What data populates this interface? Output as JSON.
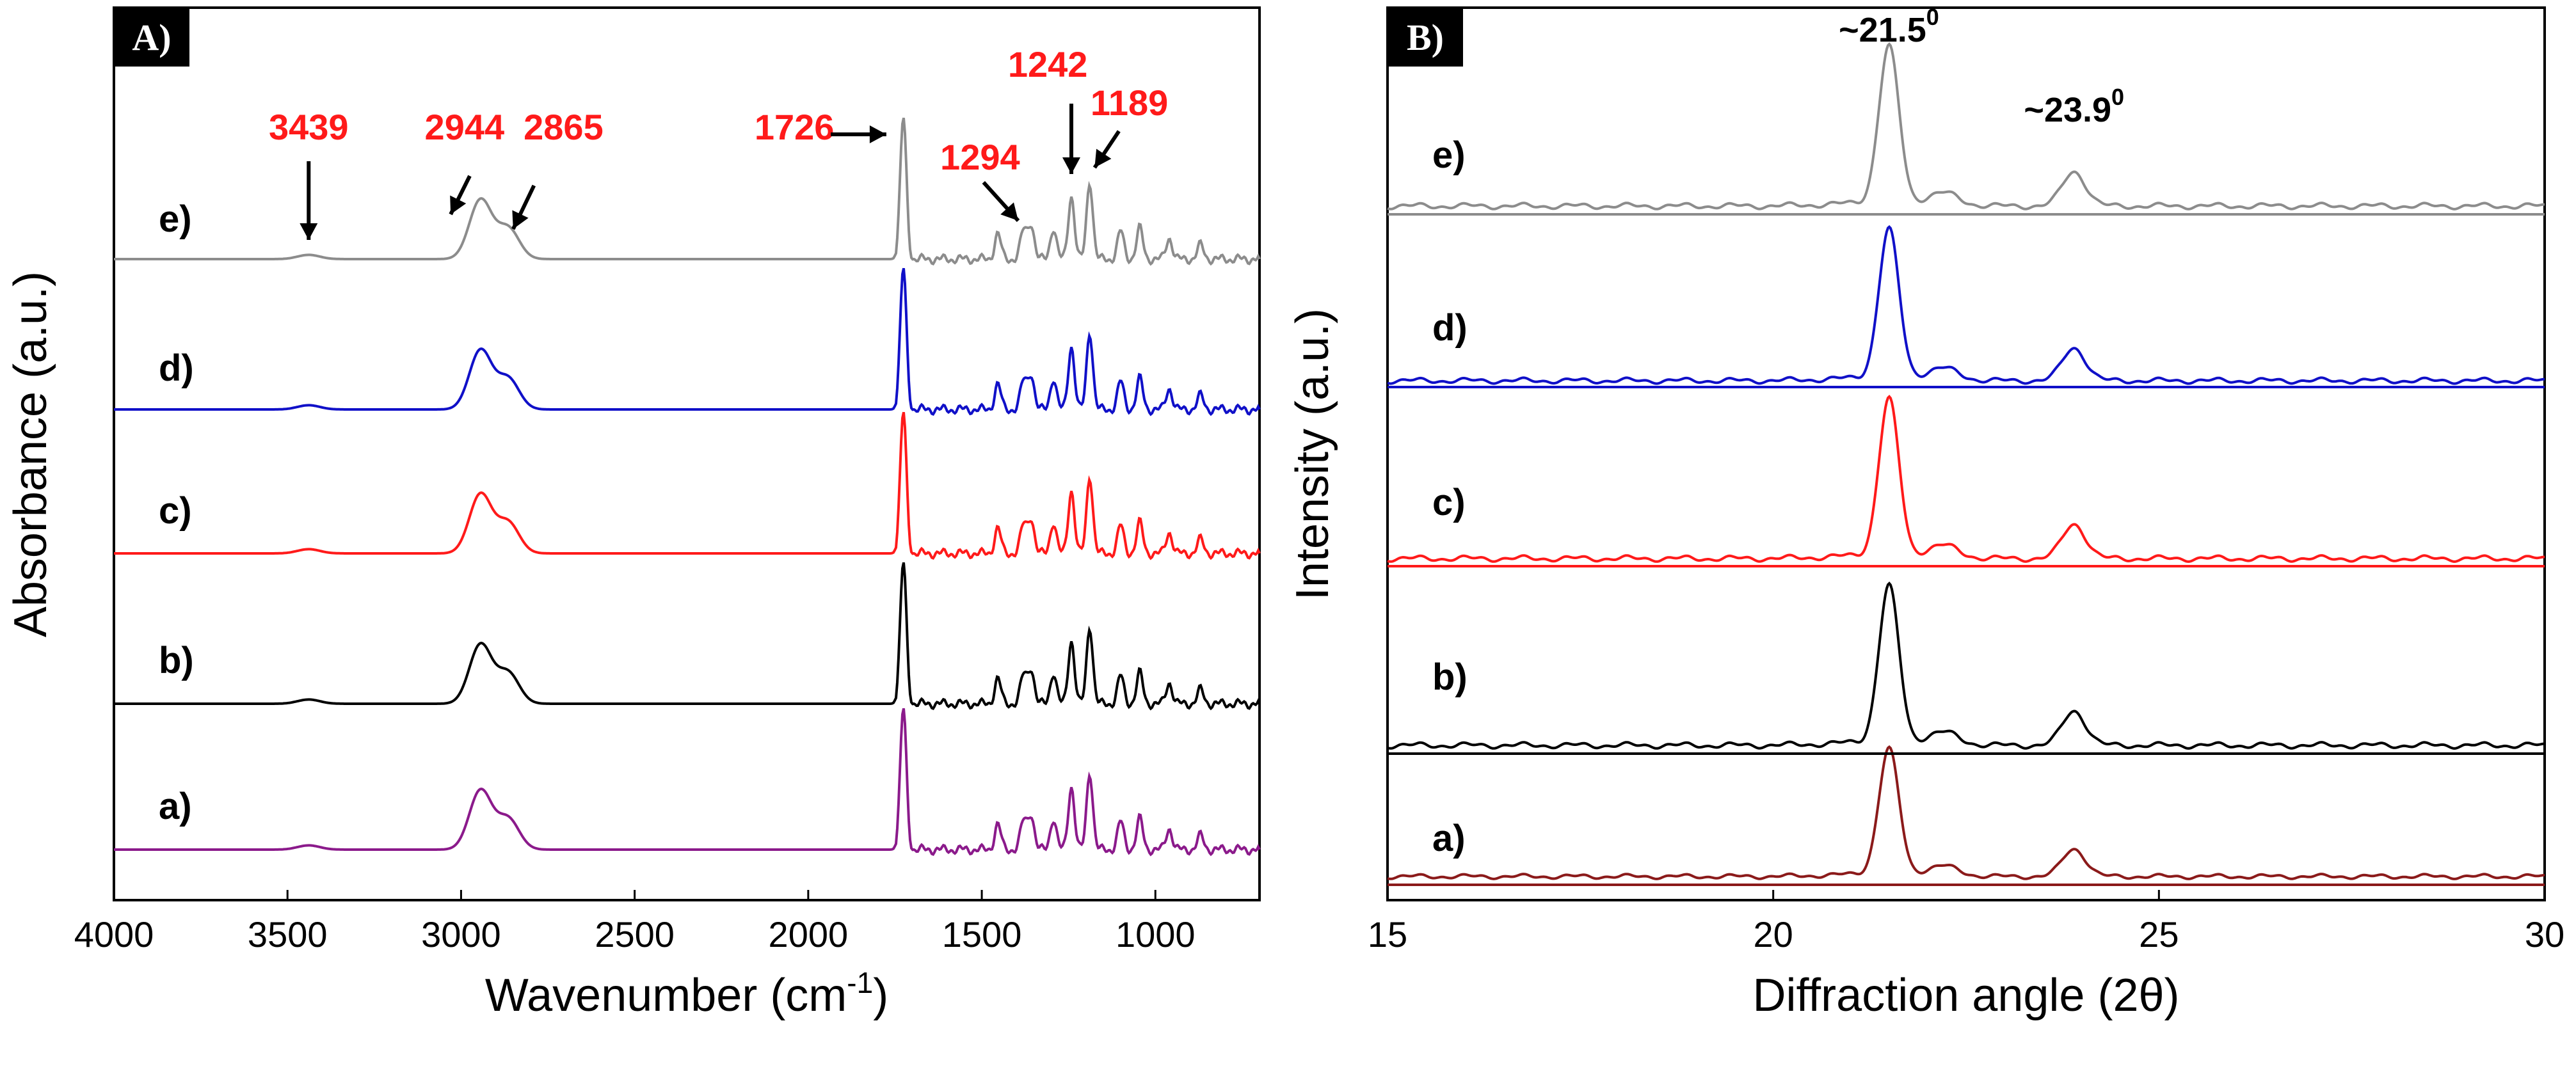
{
  "chart_data": [
    {
      "type": "line",
      "panel_tag": "A)",
      "xlabel": "Wavenumber (cm-1)",
      "xlabel_main": "Wavenumber (cm",
      "xlabel_sup": "-1",
      "xlabel_end": ")",
      "ylabel": "Absorbance (a.u.)",
      "xlim": [
        4000,
        700
      ],
      "x_ticks": [
        4000,
        3500,
        3000,
        2500,
        2000,
        1500,
        1000
      ],
      "series_order": [
        "a)",
        "b)",
        "c)",
        "d)",
        "e)"
      ],
      "series": [
        {
          "name": "a)",
          "color": "#8b1a8b"
        },
        {
          "name": "b)",
          "color": "#000000"
        },
        {
          "name": "c)",
          "color": "#ff1a1a"
        },
        {
          "name": "d)",
          "color": "#1010c8"
        },
        {
          "name": "e)",
          "color": "#8c8c8c"
        }
      ],
      "peaks_x": [
        3439,
        2944,
        2865,
        1726,
        1294,
        1242,
        1189,
        1454,
        1380,
        1358,
        1100,
        1045,
        960,
        870
      ],
      "peaks_height": [
        0.03,
        0.42,
        0.22,
        1.0,
        0.22,
        0.45,
        0.55,
        0.18,
        0.2,
        0.25,
        0.2,
        0.22,
        0.15,
        0.1
      ],
      "annotations": [
        {
          "label": "3439",
          "x": 3439
        },
        {
          "label": "2944",
          "x": 2944
        },
        {
          "label": "2865",
          "x": 2865
        },
        {
          "label": "1726",
          "x": 1726
        },
        {
          "label": "1294",
          "x": 1294
        },
        {
          "label": "1242",
          "x": 1242
        },
        {
          "label": "1189",
          "x": 1189
        }
      ]
    },
    {
      "type": "line",
      "panel_tag": "B)",
      "xlabel": "Diffraction angle (2θ)",
      "ylabel": "Intensity (a.u.)",
      "xlim": [
        15,
        30
      ],
      "x_ticks": [
        15,
        20,
        25,
        30
      ],
      "series_order": [
        "a)",
        "b)",
        "c)",
        "d)",
        "e)"
      ],
      "series": [
        {
          "name": "a)",
          "color": "#8b1a1a",
          "peak_scale": 0.8
        },
        {
          "name": "b)",
          "color": "#000000",
          "peak_scale": 1.0
        },
        {
          "name": "c)",
          "color": "#ff1a1a",
          "peak_scale": 1.0
        },
        {
          "name": "d)",
          "color": "#1010c8",
          "peak_scale": 0.95
        },
        {
          "name": "e)",
          "color": "#8c8c8c",
          "peak_scale": 1.0
        }
      ],
      "peaks_x": [
        21.5,
        22.2,
        23.9
      ],
      "peaks_height": [
        1.0,
        0.08,
        0.22
      ],
      "annotations": [
        {
          "label": "~21.5",
          "sup": "0",
          "x": 21.5
        },
        {
          "label": "~23.9",
          "sup": "0",
          "x": 23.9
        }
      ]
    }
  ]
}
